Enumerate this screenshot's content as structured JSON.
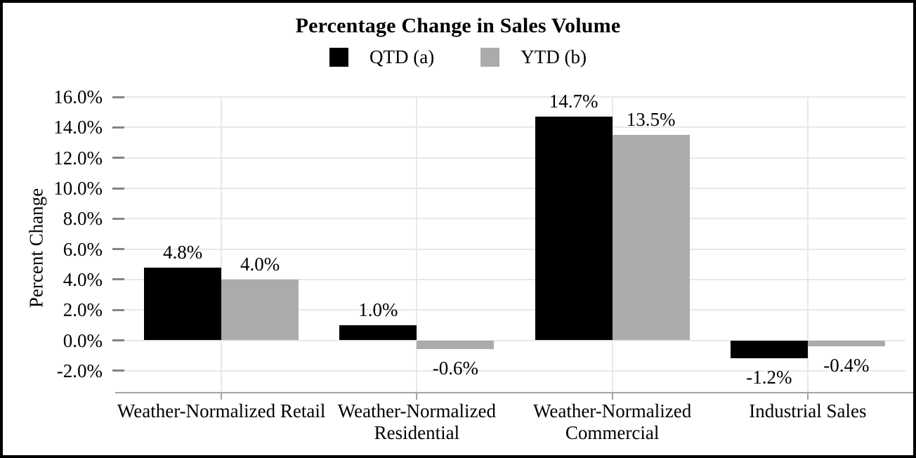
{
  "page_title": "Percentage Change in Sales Volume",
  "colors": {
    "background": "#ffffff",
    "border": "#000000",
    "text": "#000000",
    "gridline": "#e8e8e8",
    "y_tick": "#858585",
    "axis_line": "#a3a3a3",
    "series_qtd": "#000000",
    "series_ytd": "#ababab"
  },
  "chart_data": {
    "type": "bar",
    "title": "Percentage Change in Sales Volume",
    "xlabel": "",
    "ylabel": "Percent Change",
    "ylim": [
      -2.0,
      16.0
    ],
    "ytick_step": 2.0,
    "grid": true,
    "legend_position": "top-center",
    "categories": [
      "Weather-Normalized Retail",
      "Weather-Normalized Residential",
      "Weather-Normalized Commercial",
      "Industrial Sales"
    ],
    "series": [
      {
        "name": "QTD (a)",
        "color": "#000000",
        "values": [
          4.8,
          1.0,
          14.7,
          -1.2
        ],
        "labels": [
          "4.8%",
          "1.0%",
          "14.7%",
          "-1.2%"
        ]
      },
      {
        "name": "YTD (b)",
        "color": "#ababab",
        "values": [
          4.0,
          -0.6,
          13.5,
          -0.4
        ],
        "labels": [
          "4.0%",
          "-0.6%",
          "13.5%",
          "-0.4%"
        ]
      }
    ],
    "yticks": [
      {
        "value": 16,
        "label": "16.0%"
      },
      {
        "value": 14,
        "label": "14.0%"
      },
      {
        "value": 12,
        "label": "12.0%"
      },
      {
        "value": 10,
        "label": "10.0%"
      },
      {
        "value": 8,
        "label": "8.0%"
      },
      {
        "value": 6,
        "label": "6.0%"
      },
      {
        "value": 4,
        "label": "4.0%"
      },
      {
        "value": 2,
        "label": "2.0%"
      },
      {
        "value": 0,
        "label": "0.0%"
      },
      {
        "value": -2,
        "label": "-2.0%"
      }
    ]
  }
}
